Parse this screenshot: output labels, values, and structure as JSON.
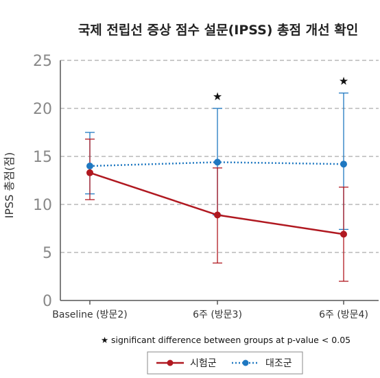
{
  "chart_data": {
    "type": "line",
    "title": "국제 전립선 증상 점수 설문(IPSS) 총점 개선 확인",
    "ylabel": "IPSS 총점(점)",
    "xlabel": "",
    "ylim": [
      0,
      25
    ],
    "yticks": [
      0,
      5,
      10,
      15,
      20,
      25
    ],
    "grid": true,
    "categories": [
      "Baseline (방문2)",
      "6주 (방문3)",
      "6주 (방문4)"
    ],
    "series": [
      {
        "name": "시험군",
        "color": "#b01820",
        "line_style": "solid",
        "values": [
          13.3,
          8.9,
          6.9
        ],
        "error_low": [
          10.5,
          3.9,
          2.0
        ],
        "error_high": [
          16.8,
          13.8,
          11.8
        ]
      },
      {
        "name": "대조군",
        "color": "#1f78c1",
        "line_style": "dotted",
        "values": [
          14.0,
          14.4,
          14.2
        ],
        "error_low": [
          11.1,
          8.9,
          7.4
        ],
        "error_high": [
          17.5,
          20.0,
          21.6
        ]
      }
    ],
    "significance": [
      false,
      true,
      true
    ],
    "significance_symbol": "★",
    "annotation": "significant difference between groups at p-value < 0.05",
    "legend_position": "bottom"
  }
}
